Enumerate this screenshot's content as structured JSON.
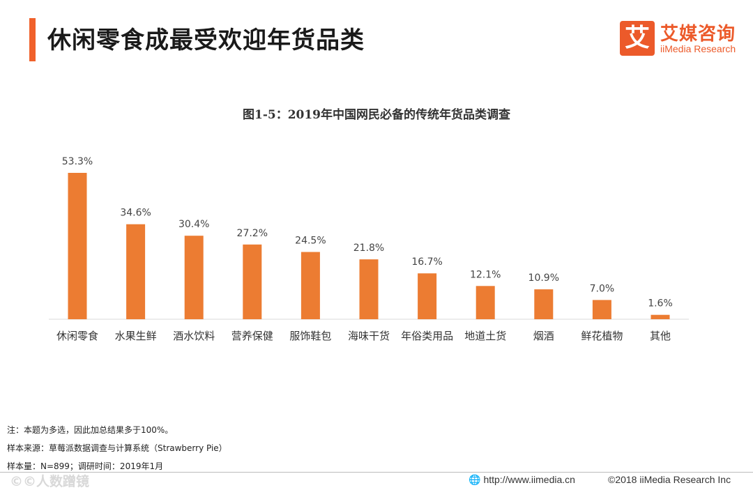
{
  "header": {
    "title": "休闲零食成最受欢迎年货品类",
    "logo_mark": "艾",
    "logo_cn": "艾媒咨询",
    "logo_en": "iiMedia Research"
  },
  "colors": {
    "accent": "#f0612b",
    "bar": "#ec7c32",
    "axis": "#d9d9d9"
  },
  "chart_data": {
    "type": "bar",
    "title": "图1-5：2019年中国网民必备的传统年货品类调查",
    "categories": [
      "休闲零食",
      "水果生鲜",
      "酒水饮料",
      "营养保健",
      "服饰鞋包",
      "海味干货",
      "年俗类用品",
      "地道土货",
      "烟酒",
      "鲜花植物",
      "其他"
    ],
    "values": [
      53.3,
      34.6,
      30.4,
      27.2,
      24.5,
      21.8,
      16.7,
      12.1,
      10.9,
      7.0,
      1.6
    ],
    "labels": [
      "53.3%",
      "34.6%",
      "30.4%",
      "27.2%",
      "24.5%",
      "21.8%",
      "16.7%",
      "12.1%",
      "10.9%",
      "7.0%",
      "1.6%"
    ],
    "unit": "%",
    "ylim": [
      0,
      53.3
    ],
    "xlabel": "",
    "ylabel": "",
    "grid": false,
    "legend": "none"
  },
  "notes": {
    "note": "注：本题为多选，因此加总结果多于100%。",
    "source": "样本来源：草莓派数据调查与计算系统（Strawberry Pie）",
    "sample": "样本量：N=899；调研时间：2019年1月"
  },
  "footer": {
    "watermark": "©©人数蹭镜",
    "url_icon": "globe-icon",
    "url": "http://www.iimedia.cn",
    "copyright": "©2018  iiMedia Research  Inc"
  }
}
